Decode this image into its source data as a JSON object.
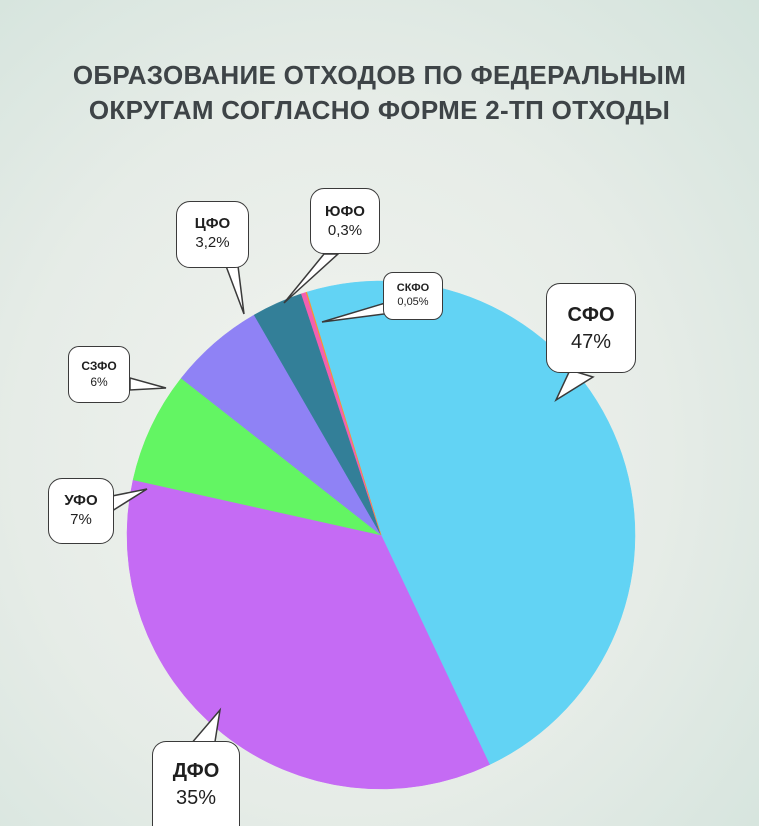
{
  "title": {
    "line1": "ОБРАЗОВАНИЕ ОТХОДОВ ПО ФЕДЕРАЛЬНЫМ",
    "line2": "ОКРУГАМ СОГЛАСНО ФОРМЕ 2-ТП ОТХОДЫ"
  },
  "chart_data": {
    "type": "pie",
    "title": "ОБРАЗОВАНИЕ ОТХОДОВ ПО ФЕДЕРАЛЬНЫМ ОКРУГАМ СОГЛАСНО ФОРМЕ 2-ТП ОТХОДЫ",
    "slices": [
      {
        "name": "СФО",
        "value": 47,
        "label": "47%",
        "color": "#62d3f4"
      },
      {
        "name": "ДФО",
        "value": 35,
        "label": "35%",
        "color": "#c56bf4"
      },
      {
        "name": "УФО",
        "value": 7,
        "label": "7%",
        "color": "#63f563"
      },
      {
        "name": "СЗФО",
        "value": 6,
        "label": "6%",
        "color": "#8f82f5"
      },
      {
        "name": "ЦФО",
        "value": 3.2,
        "label": "3,2%",
        "color": "#337f98"
      },
      {
        "name": "ЮФО",
        "value": 0.3,
        "label": "0,3%",
        "color": "#f45fb0"
      },
      {
        "name": "СКФО",
        "value": 0.05,
        "label": "0,05%",
        "color": "#f6962f"
      }
    ]
  },
  "callouts": {
    "sfo": {
      "name": "СФО",
      "pct": "47%"
    },
    "dfo": {
      "name": "ДФО",
      "pct": "35%"
    },
    "ufo": {
      "name": "УФО",
      "pct": "7%"
    },
    "szfo": {
      "name": "СЗФО",
      "pct": "6%"
    },
    "cfo": {
      "name": "ЦФО",
      "pct": "3,2%"
    },
    "yufo": {
      "name": "ЮФО",
      "pct": "0,3%"
    },
    "skfo": {
      "name": "СКФО",
      "pct": "0,05%"
    }
  }
}
